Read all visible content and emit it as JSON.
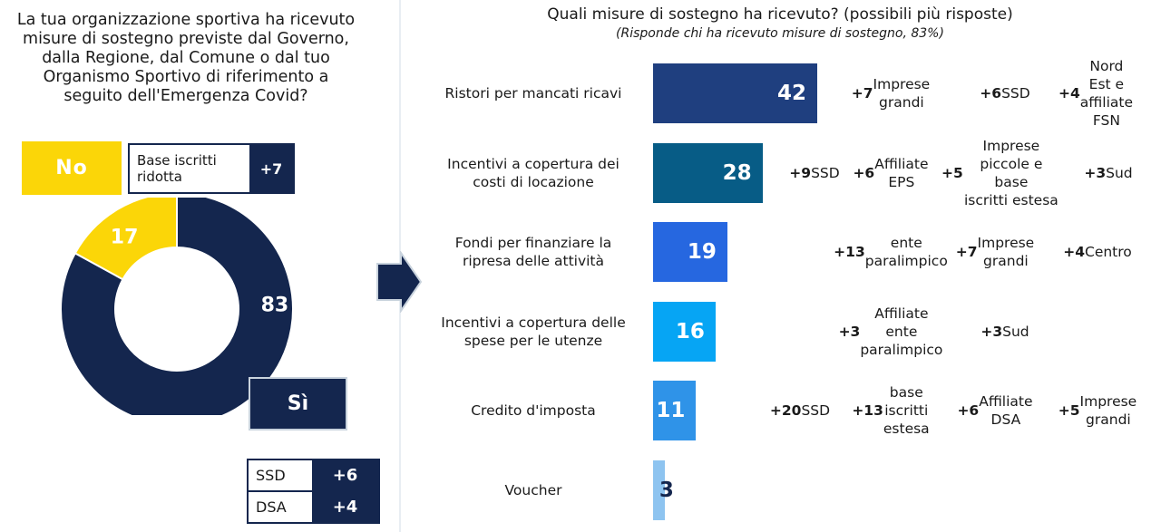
{
  "left": {
    "question": "La tua organizzazione sportiva ha ricevuto\nmisure di sostegno previste dal Governo,\ndalla Regione, dal Comune o dal tuo\nOrganismo Sportivo di riferimento a\nseguito dell'Emergenza Covid?",
    "no_label": "No",
    "si_label": "Sì",
    "no_tag": {
      "label": "Base iscritti\nridotta",
      "value": "+7"
    },
    "si_tags": [
      {
        "label": "SSD",
        "value": "+6"
      },
      {
        "label": "DSA",
        "value": "+4"
      }
    ]
  },
  "right": {
    "title": "Quali misure di sostegno ha ricevuto? (possibili più risposte)",
    "subtitle": "(Risponde chi ha ricevuto misure di sostegno, 83%)"
  },
  "colors": {
    "navy": "#14264e",
    "yellow": "#fbd608",
    "bars": [
      "#1f3f7f",
      "#075c86",
      "#2667e0",
      "#06a5f4",
      "#2f93e8",
      "#8ec4f0"
    ]
  },
  "chart_data": [
    {
      "type": "pie",
      "labels": [
        "Sì",
        "No"
      ],
      "values": [
        83,
        17
      ],
      "colors": [
        "#14264e",
        "#fbd608"
      ]
    },
    {
      "type": "bar",
      "orientation": "horizontal",
      "title": "Quali misure di sostegno ha ricevuto? (possibili più risposte)",
      "subtitle": "(Risponde chi ha ricevuto misure di sostegno, 83%)",
      "categories": [
        "Ristori per mancati ricavi",
        "Incentivi a copertura dei\ncosti di locazione",
        "Fondi per finanziare la\nripresa delle attività",
        "Incentivi a copertura delle\nspese per le utenze",
        "Credito d'imposta",
        "Voucher"
      ],
      "values": [
        42,
        28,
        19,
        16,
        11,
        3
      ],
      "xlim": [
        0,
        100
      ],
      "annotations": [
        [
          "+7 Imprese\ngrandi",
          "+6 SSD",
          "+4 Nord\nEst e\naffiliate\nFSN"
        ],
        [
          "+9 SSD",
          "+6 Affiliate\nEPS",
          "+5 Imprese\npiccole e base\niscritti estesa",
          "+3 Sud"
        ],
        [
          "+13 ente\nparalimpico",
          "+7 Imprese\ngrandi",
          "+4 Centro"
        ],
        [
          "+3 Affiliate\nente\nparalimpico",
          "+3 Sud"
        ],
        [
          "+20 SSD",
          "+13 base\niscritti\nestesa",
          "+6 Affiliate\nDSA",
          "+5 Imprese\ngrandi"
        ],
        []
      ]
    }
  ]
}
